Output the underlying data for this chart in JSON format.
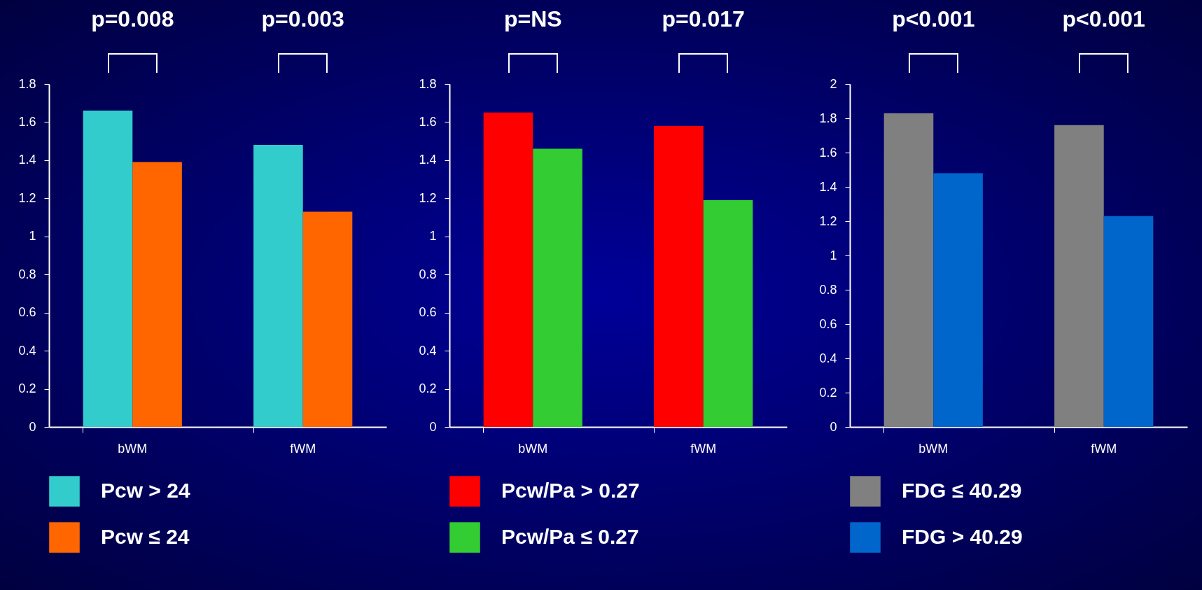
{
  "chart_data": [
    {
      "type": "bar",
      "categories": [
        "bWM",
        "fWM"
      ],
      "series": [
        {
          "name": "Pcw > 24",
          "color": "#33cccc",
          "values": [
            1.66,
            1.48
          ]
        },
        {
          "name": "Pcw ≤ 24",
          "color": "#ff6600",
          "values": [
            1.39,
            1.13
          ]
        }
      ],
      "ylim": [
        0,
        1.8
      ],
      "yticks": [
        0,
        0.2,
        0.4,
        0.6,
        0.8,
        1,
        1.2,
        1.4,
        1.6,
        1.8
      ],
      "grid": false,
      "legend": "bottom",
      "annotations": [
        "p=0.008",
        "p=0.003"
      ]
    },
    {
      "type": "bar",
      "categories": [
        "bWM",
        "fWM"
      ],
      "series": [
        {
          "name": "Pcw/Pa > 0.27",
          "color": "#ff0000",
          "values": [
            1.65,
            1.58
          ]
        },
        {
          "name": "Pcw/Pa ≤ 0.27",
          "color": "#33cc33",
          "values": [
            1.46,
            1.19
          ]
        }
      ],
      "ylim": [
        0,
        1.8
      ],
      "yticks": [
        0,
        0.2,
        0.4,
        0.6,
        0.8,
        1,
        1.2,
        1.4,
        1.6,
        1.8
      ],
      "grid": false,
      "legend": "bottom",
      "annotations": [
        "p=NS",
        "p=0.017"
      ]
    },
    {
      "type": "bar",
      "categories": [
        "bWM",
        "fWM"
      ],
      "series": [
        {
          "name": "FDG ≤ 40.29",
          "color": "#808080",
          "values": [
            1.83,
            1.76
          ]
        },
        {
          "name": "FDG > 40.29",
          "color": "#0066cc",
          "values": [
            1.48,
            1.23
          ]
        }
      ],
      "ylim": [
        0,
        2
      ],
      "yticks": [
        0,
        0.2,
        0.4,
        0.6,
        0.8,
        1,
        1.2,
        1.4,
        1.6,
        1.8,
        2
      ],
      "grid": false,
      "legend": "bottom",
      "annotations": [
        "p<0.001",
        "p<0.001"
      ]
    }
  ]
}
